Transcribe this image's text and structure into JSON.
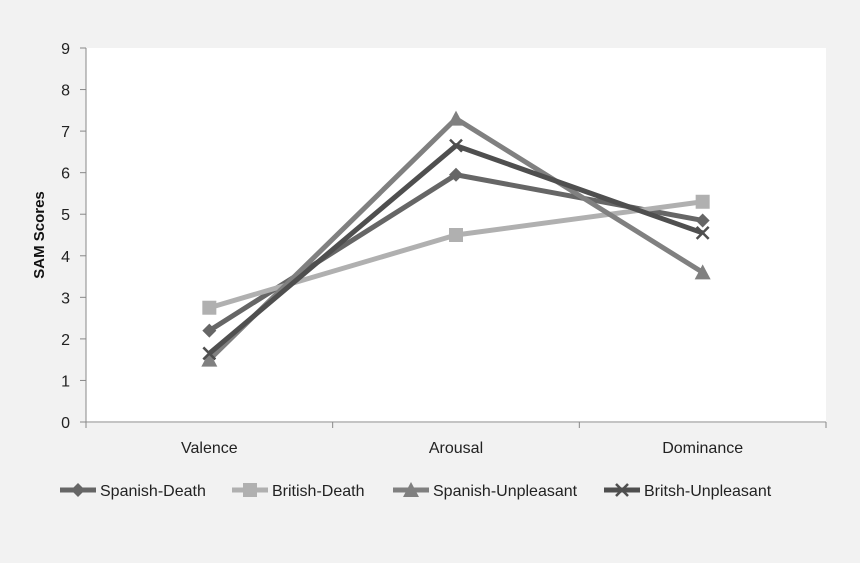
{
  "chart_data": {
    "type": "line",
    "categories": [
      "Valence",
      "Arousal",
      "Dominance"
    ],
    "ylabel": "SAM Scores",
    "ylim": [
      0,
      9
    ],
    "yticks": [
      0,
      1,
      2,
      3,
      4,
      5,
      6,
      7,
      8,
      9
    ],
    "grid": false,
    "legend_position": "bottom",
    "series": [
      {
        "name": "Spanish-Death",
        "values": [
          2.2,
          5.95,
          4.85
        ],
        "color": "#666666",
        "marker": "diamond"
      },
      {
        "name": "British-Death",
        "values": [
          2.75,
          4.5,
          5.3
        ],
        "color": "#b0b0b0",
        "marker": "square"
      },
      {
        "name": "Spanish-Unpleasant",
        "values": [
          1.5,
          7.3,
          3.6
        ],
        "color": "#808080",
        "marker": "triangle"
      },
      {
        "name": "Britsh-Unpleasant",
        "values": [
          1.65,
          6.65,
          4.55
        ],
        "color": "#4f4f4f",
        "marker": "x"
      }
    ]
  }
}
